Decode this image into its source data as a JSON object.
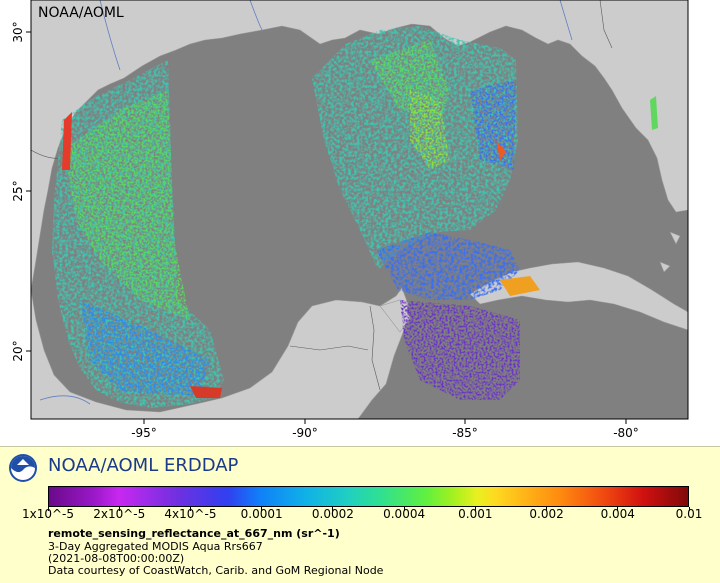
{
  "map": {
    "watermark": "NOAA/AOML",
    "lat_ticks": [
      "30°",
      "25°",
      "20°"
    ],
    "lon_ticks": [
      "-95°",
      "-90°",
      "-85°",
      "-80°"
    ],
    "colors": {
      "land": "#cccccc",
      "no_data": "#808080",
      "water_line": "#6080c0"
    }
  },
  "legend": {
    "brand": "NOAA/AOML ERDDAP",
    "colorbar_labels": [
      "1x10^-5",
      "2x10^-5",
      "4x10^-5",
      "0.0001",
      "0.0002",
      "0.0004",
      "0.001",
      "0.002",
      "0.004",
      "0.01"
    ],
    "variable": "remote_sensing_reflectance_at_667_nm (sr^-1)",
    "dataset": "3-Day Aggregated MODIS Aqua Rrs667",
    "time": "(2021-08-08T00:00:00Z)",
    "credit": "Data courtesy of CoastWatch, Carib. and GoM Regional Node"
  }
}
